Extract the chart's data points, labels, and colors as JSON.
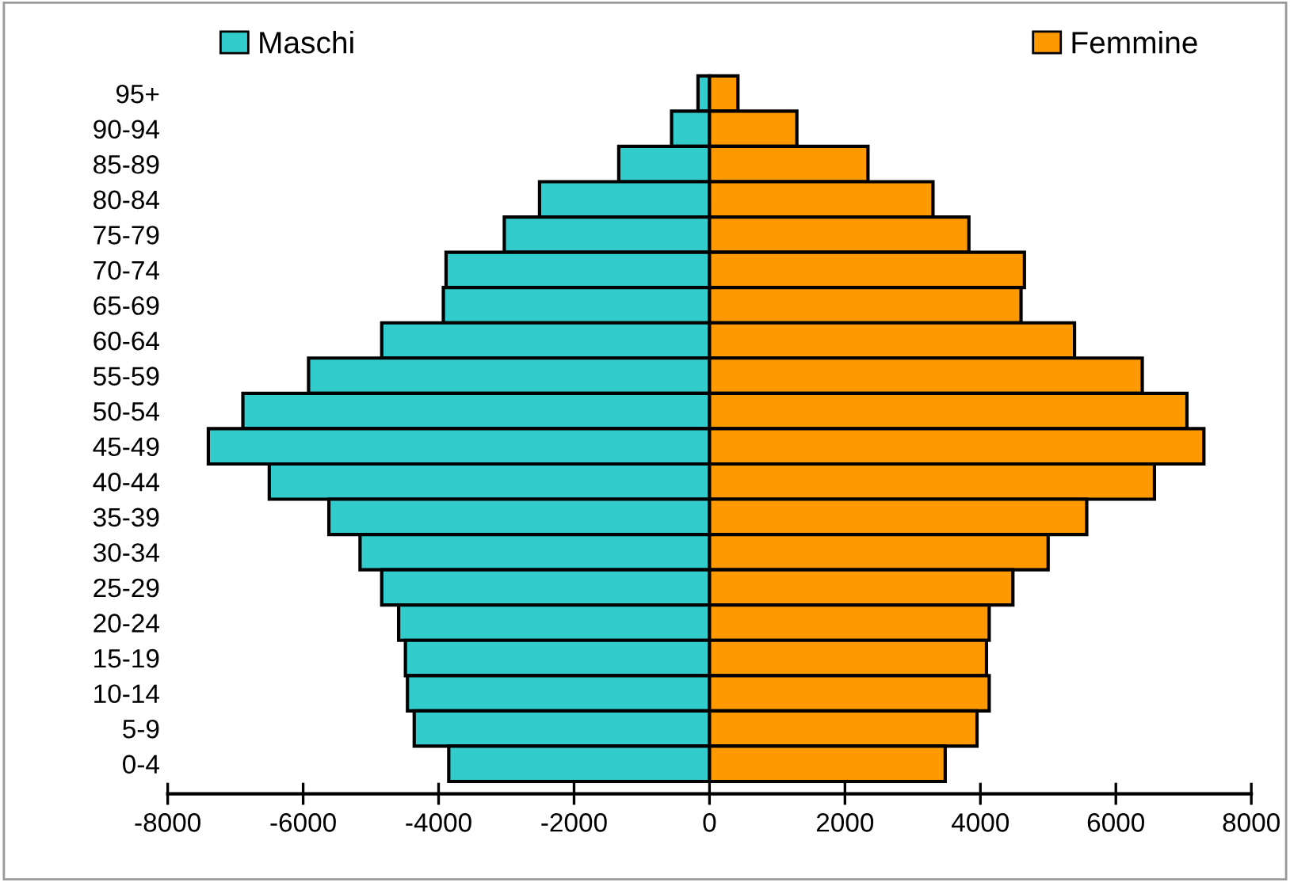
{
  "chart_data": {
    "type": "bar",
    "orientation": "horizontal",
    "stacked": true,
    "categories": [
      "95+",
      "90-94",
      "85-89",
      "80-84",
      "75-79",
      "70-74",
      "65-69",
      "60-64",
      "55-59",
      "50-54",
      "45-49",
      "40-44",
      "35-39",
      "30-34",
      "25-29",
      "20-24",
      "15-19",
      "10-14",
      "5-9",
      "0-4"
    ],
    "series": [
      {
        "name": "Maschi",
        "color": "#33cccc",
        "values": [
          -170,
          -560,
          -1340,
          -2510,
          -3030,
          -3890,
          -3930,
          -4840,
          -5920,
          -6890,
          -7400,
          -6500,
          -5620,
          -5160,
          -4840,
          -4590,
          -4490,
          -4460,
          -4360,
          -3850
        ]
      },
      {
        "name": "Femmine",
        "color": "#ff9900",
        "values": [
          420,
          1290,
          2340,
          3300,
          3830,
          4650,
          4600,
          5390,
          6390,
          7050,
          7300,
          6570,
          5570,
          5000,
          4480,
          4130,
          4090,
          4130,
          3950,
          3480
        ]
      }
    ],
    "xlim": [
      -8000,
      8000
    ],
    "xticks": [
      -8000,
      -6000,
      -4000,
      -2000,
      0,
      2000,
      4000,
      6000,
      8000
    ],
    "grid": false,
    "legend": "top"
  }
}
